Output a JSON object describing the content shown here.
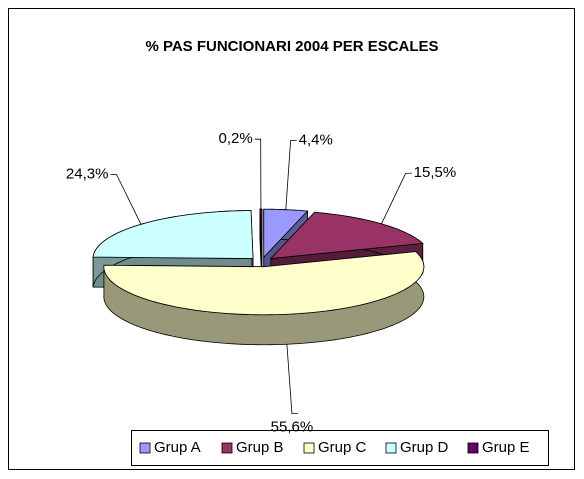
{
  "chart_data": {
    "type": "pie",
    "title": "% PAS FUNCIONARI 2004 PER ESCALES",
    "categories": [
      "Grup A",
      "Grup B",
      "Grup C",
      "Grup D",
      "Grup E"
    ],
    "values": [
      4.4,
      15.5,
      55.6,
      24.3,
      0.2
    ],
    "value_labels": [
      "4,4%",
      "15,5%",
      "55,6%",
      "24,3%",
      "0,2%"
    ],
    "colors": [
      "#9999ff",
      "#993366",
      "#ffffcc",
      "#ccffff",
      "#660066"
    ],
    "legend": "bottom"
  }
}
